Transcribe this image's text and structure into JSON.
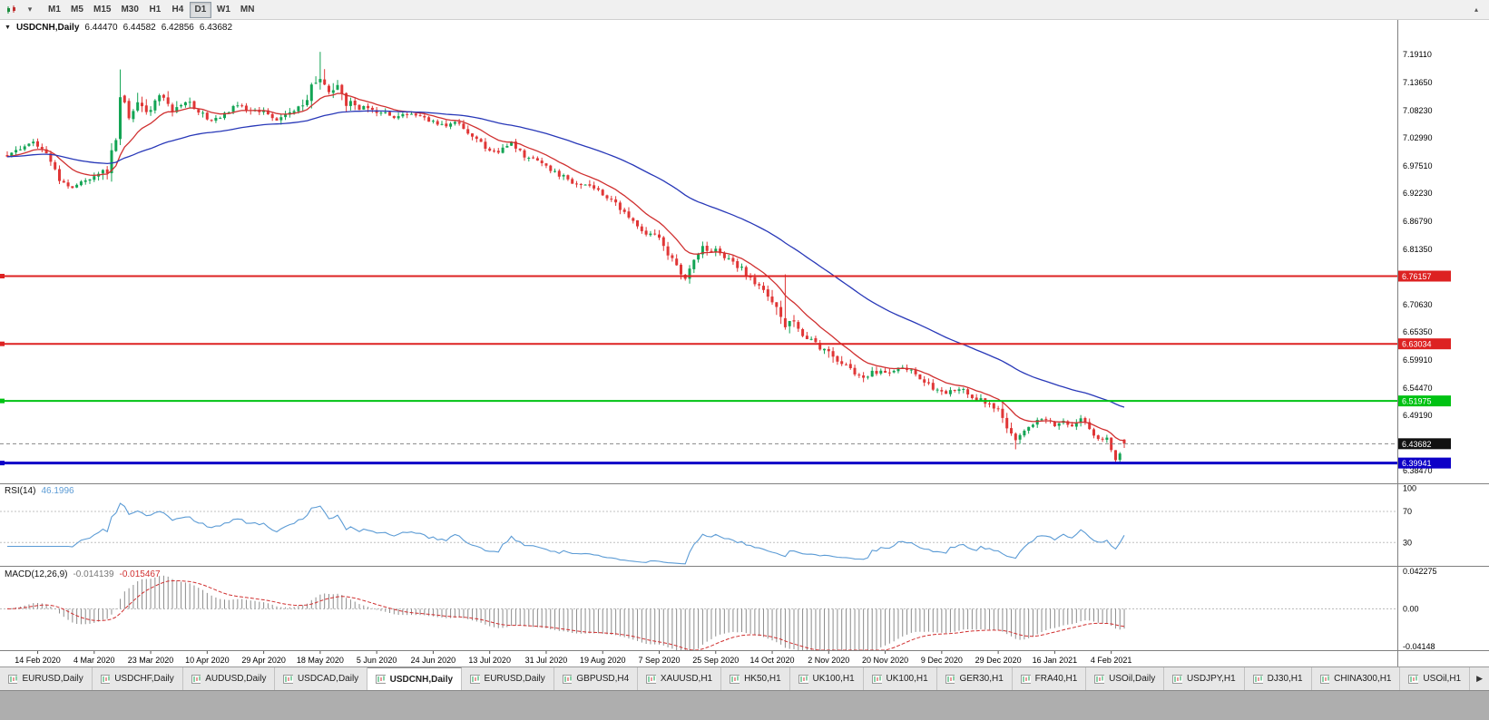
{
  "icons": {
    "dropdown_caret": "▾",
    "collapse_caret": "▴",
    "symbol_caret": "▼",
    "tab_scroll": "▶"
  },
  "toolbar": {
    "timeframes": [
      "M1",
      "M5",
      "M15",
      "M30",
      "H1",
      "H4",
      "D1",
      "W1",
      "MN"
    ],
    "active_timeframe": "D1"
  },
  "chart": {
    "header": {
      "symbol": "USDCNH,Daily",
      "open": "6.44470",
      "high": "6.44582",
      "low": "6.42856",
      "close": "6.43682"
    }
  },
  "chart_data": {
    "type": "candlestick",
    "symbol": "USDCNH",
    "timeframe": "Daily",
    "bars": 258,
    "last_ohlc": {
      "open": 6.4447,
      "high": 6.44582,
      "low": 6.42856,
      "close": 6.43682
    },
    "price_range": {
      "top": 7.2579,
      "bottom": 6.3601
    },
    "close_anchors": [
      [
        0,
        6.995
      ],
      [
        3,
        7.005
      ],
      [
        6,
        7.025
      ],
      [
        9,
        6.995
      ],
      [
        12,
        6.95
      ],
      [
        15,
        6.932
      ],
      [
        18,
        6.95
      ],
      [
        21,
        6.958
      ],
      [
        23,
        6.968
      ],
      [
        25,
        7.03
      ],
      [
        26,
        7.095
      ],
      [
        28,
        7.07
      ],
      [
        30,
        7.105
      ],
      [
        32,
        7.075
      ],
      [
        34,
        7.1
      ],
      [
        36,
        7.115
      ],
      [
        38,
        7.085
      ],
      [
        41,
        7.105
      ],
      [
        44,
        7.08
      ],
      [
        47,
        7.062
      ],
      [
        50,
        7.075
      ],
      [
        53,
        7.092
      ],
      [
        56,
        7.08
      ],
      [
        59,
        7.082
      ],
      [
        62,
        7.065
      ],
      [
        65,
        7.078
      ],
      [
        68,
        7.095
      ],
      [
        70,
        7.125
      ],
      [
        72,
        7.148
      ],
      [
        74,
        7.118
      ],
      [
        76,
        7.132
      ],
      [
        78,
        7.098
      ],
      [
        81,
        7.088
      ],
      [
        85,
        7.082
      ],
      [
        89,
        7.068
      ],
      [
        93,
        7.076
      ],
      [
        97,
        7.062
      ],
      [
        100,
        7.052
      ],
      [
        103,
        7.062
      ],
      [
        106,
        7.04
      ],
      [
        109,
        7.018
      ],
      [
        111,
        7.005
      ],
      [
        113,
        7.002
      ],
      [
        116,
        7.018
      ],
      [
        119,
        6.995
      ],
      [
        122,
        6.982
      ],
      [
        124,
        6.972
      ],
      [
        127,
        6.958
      ],
      [
        130,
        6.945
      ],
      [
        133,
        6.938
      ],
      [
        136,
        6.925
      ],
      [
        138,
        6.915
      ],
      [
        141,
        6.892
      ],
      [
        144,
        6.868
      ],
      [
        147,
        6.842
      ],
      [
        150,
        6.835
      ],
      [
        152,
        6.805
      ],
      [
        154,
        6.778
      ],
      [
        156,
        6.762
      ],
      [
        158,
        6.788
      ],
      [
        160,
        6.815
      ],
      [
        163,
        6.81
      ],
      [
        166,
        6.792
      ],
      [
        169,
        6.775
      ],
      [
        172,
        6.748
      ],
      [
        175,
        6.722
      ],
      [
        177,
        6.692
      ],
      [
        179,
        6.662
      ],
      [
        181,
        6.668
      ],
      [
        183,
        6.648
      ],
      [
        186,
        6.628
      ],
      [
        189,
        6.618
      ],
      [
        191,
        6.6
      ],
      [
        194,
        6.578
      ],
      [
        197,
        6.565
      ],
      [
        199,
        6.578
      ],
      [
        202,
        6.572
      ],
      [
        205,
        6.588
      ],
      [
        208,
        6.578
      ],
      [
        211,
        6.558
      ],
      [
        214,
        6.538
      ],
      [
        216,
        6.532
      ],
      [
        219,
        6.545
      ],
      [
        222,
        6.528
      ],
      [
        225,
        6.518
      ],
      [
        228,
        6.505
      ],
      [
        230,
        6.472
      ],
      [
        232,
        6.445
      ],
      [
        234,
        6.462
      ],
      [
        236,
        6.478
      ],
      [
        238,
        6.488
      ],
      [
        241,
        6.472
      ],
      [
        243,
        6.482
      ],
      [
        245,
        6.47
      ],
      [
        247,
        6.486
      ],
      [
        249,
        6.462
      ],
      [
        251,
        6.442
      ],
      [
        253,
        6.448
      ],
      [
        254,
        6.428
      ],
      [
        255,
        6.408
      ],
      [
        256,
        6.42
      ],
      [
        257,
        6.437
      ]
    ],
    "vol_anchors": [
      [
        0,
        0.013
      ],
      [
        10,
        0.014
      ],
      [
        20,
        0.012
      ],
      [
        24,
        0.03
      ],
      [
        27,
        0.045
      ],
      [
        30,
        0.035
      ],
      [
        34,
        0.025
      ],
      [
        40,
        0.02
      ],
      [
        48,
        0.014
      ],
      [
        58,
        0.013
      ],
      [
        66,
        0.016
      ],
      [
        70,
        0.026
      ],
      [
        73,
        0.034
      ],
      [
        76,
        0.024
      ],
      [
        82,
        0.014
      ],
      [
        95,
        0.012
      ],
      [
        110,
        0.012
      ],
      [
        125,
        0.012
      ],
      [
        140,
        0.014
      ],
      [
        150,
        0.016
      ],
      [
        157,
        0.018
      ],
      [
        165,
        0.013
      ],
      [
        175,
        0.016
      ],
      [
        179,
        0.04
      ],
      [
        182,
        0.018
      ],
      [
        190,
        0.022
      ],
      [
        200,
        0.014
      ],
      [
        212,
        0.013
      ],
      [
        222,
        0.012
      ],
      [
        229,
        0.022
      ],
      [
        232,
        0.02
      ],
      [
        236,
        0.013
      ],
      [
        244,
        0.013
      ],
      [
        250,
        0.012
      ],
      [
        257,
        0.01
      ]
    ],
    "spikes": [
      {
        "bar": 26,
        "high": 7.162
      },
      {
        "bar": 72,
        "high": 7.196
      },
      {
        "bar": 156,
        "low": 6.754
      },
      {
        "bar": 179,
        "high": 6.765
      },
      {
        "bar": 232,
        "low": 6.426
      },
      {
        "bar": 255,
        "low": 6.3995
      }
    ],
    "candle_colors": {
      "up": "#13a454",
      "down": "#e03636"
    },
    "moving_averages": [
      {
        "name": "fast-ma",
        "type": "ema",
        "period": 12,
        "color": "#d03030"
      },
      {
        "name": "slow-ma",
        "type": "ema",
        "period": 55,
        "color": "#2838b8"
      }
    ],
    "horizontal_lines": [
      {
        "price": 6.76157,
        "label": "6.76157",
        "color": "#dd2222",
        "width": 2
      },
      {
        "price": 6.63034,
        "label": "6.63034",
        "color": "#dd2222",
        "width": 2
      },
      {
        "price": 6.51975,
        "label": "6.51975",
        "color": "#00c213",
        "width": 2
      },
      {
        "price": 6.39941,
        "label": "6.39941",
        "color": "#0d00c7",
        "width": 3
      }
    ],
    "current_price": {
      "value": 6.43682,
      "label": "6.43682",
      "tag_color": "#111111"
    },
    "y_ticks": [
      "7.19110",
      "7.13650",
      "7.08230",
      "7.02990",
      "6.97510",
      "6.92230",
      "6.86790",
      "6.81350",
      "6.70630",
      "6.65350",
      "6.59910",
      "6.54470",
      "6.49190",
      "6.38470"
    ],
    "x_labels": {
      "first_bar": 7,
      "step": 13,
      "labels": [
        "14 Feb 2020",
        "4 Mar 2020",
        "23 Mar 2020",
        "10 Apr 2020",
        "29 Apr 2020",
        "18 May 2020",
        "5 Jun 2020",
        "24 Jun 2020",
        "13 Jul 2020",
        "31 Jul 2020",
        "19 Aug 2020",
        "7 Sep 2020",
        "25 Sep 2020",
        "14 Oct 2020",
        "2 Nov 2020",
        "20 Nov 2020",
        "9 Dec 2020",
        "29 Dec 2020",
        "16 Jan 2021",
        "4 Feb 2021"
      ]
    },
    "indicators": {
      "rsi": {
        "title": "RSI(14)",
        "value": "46.1996",
        "period": 14,
        "line_color": "#5b9bd5",
        "levels": [
          "100",
          "70",
          "30"
        ],
        "scale_max": 105
      },
      "macd": {
        "title": "MACD(12,26,9)",
        "macd_value": "-0.014139",
        "signal_value": "-0.015467",
        "histogram_color": "#8c8c8c",
        "signal_color": "#d03030",
        "axis_labels": [
          "0.042275",
          "0.00",
          "-0.04148"
        ],
        "scale": {
          "top": 0.042275,
          "bottom": -0.04148
        }
      }
    }
  },
  "tabs": {
    "items": [
      {
        "label": "EURUSD,Daily",
        "active": false
      },
      {
        "label": "USDCHF,Daily",
        "active": false
      },
      {
        "label": "AUDUSD,Daily",
        "active": false
      },
      {
        "label": "USDCAD,Daily",
        "active": false
      },
      {
        "label": "USDCNH,Daily",
        "active": true
      },
      {
        "label": "EURUSD,Daily",
        "active": false
      },
      {
        "label": "GBPUSD,H4",
        "active": false
      },
      {
        "label": "XAUUSD,H1",
        "active": false
      },
      {
        "label": "HK50,H1",
        "active": false
      },
      {
        "label": "UK100,H1",
        "active": false
      },
      {
        "label": "UK100,H1",
        "active": false
      },
      {
        "label": "GER30,H1",
        "active": false
      },
      {
        "label": "FRA40,H1",
        "active": false
      },
      {
        "label": "USOil,Daily",
        "active": false
      },
      {
        "label": "USDJPY,H1",
        "active": false
      },
      {
        "label": "DJ30,H1",
        "active": false
      },
      {
        "label": "CHINA300,H1",
        "active": false
      },
      {
        "label": "USOil,H1",
        "active": false
      }
    ]
  }
}
